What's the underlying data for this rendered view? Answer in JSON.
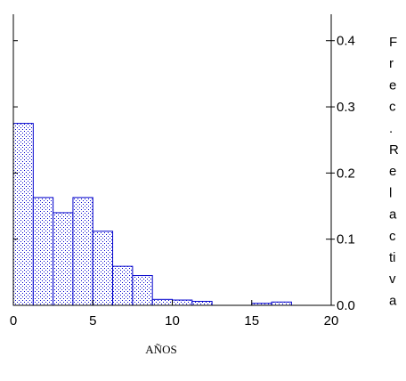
{
  "chart_data": {
    "type": "bar",
    "xlabel": "AÑOS",
    "ylabel": "Frec.Relactiva",
    "ylabel_lines": [
      "F",
      "r",
      "e",
      "c",
      ".",
      "R",
      "e",
      "l",
      "a",
      "c",
      "ti",
      "v",
      "a"
    ],
    "xlim": [
      0,
      20
    ],
    "ylim": [
      0,
      0.44
    ],
    "x_ticks": [
      0,
      5,
      10,
      15,
      20
    ],
    "x_tick_labels": [
      "0",
      "5",
      "10",
      "15",
      "20"
    ],
    "y_ticks": [
      0.0,
      0.1,
      0.2,
      0.3,
      0.4
    ],
    "y_tick_labels": [
      "0.0",
      "0.1",
      "0.2",
      "0.3",
      "0.4"
    ],
    "bin_width": 1.25,
    "bin_starts": [
      0,
      1.25,
      2.5,
      3.75,
      5,
      6.25,
      7.5,
      8.75,
      10,
      11.25,
      12.5,
      13.75,
      15,
      16.25,
      17.5,
      18.75
    ],
    "values": [
      0.275,
      0.163,
      0.14,
      0.163,
      0.112,
      0.059,
      0.045,
      0.009,
      0.008,
      0.006,
      0.0,
      0.0,
      0.003,
      0.005,
      0.0,
      0.0
    ],
    "bar_color": "#0000cc",
    "fill_pattern": "dots",
    "y_axis_position": "right",
    "grid": false
  }
}
